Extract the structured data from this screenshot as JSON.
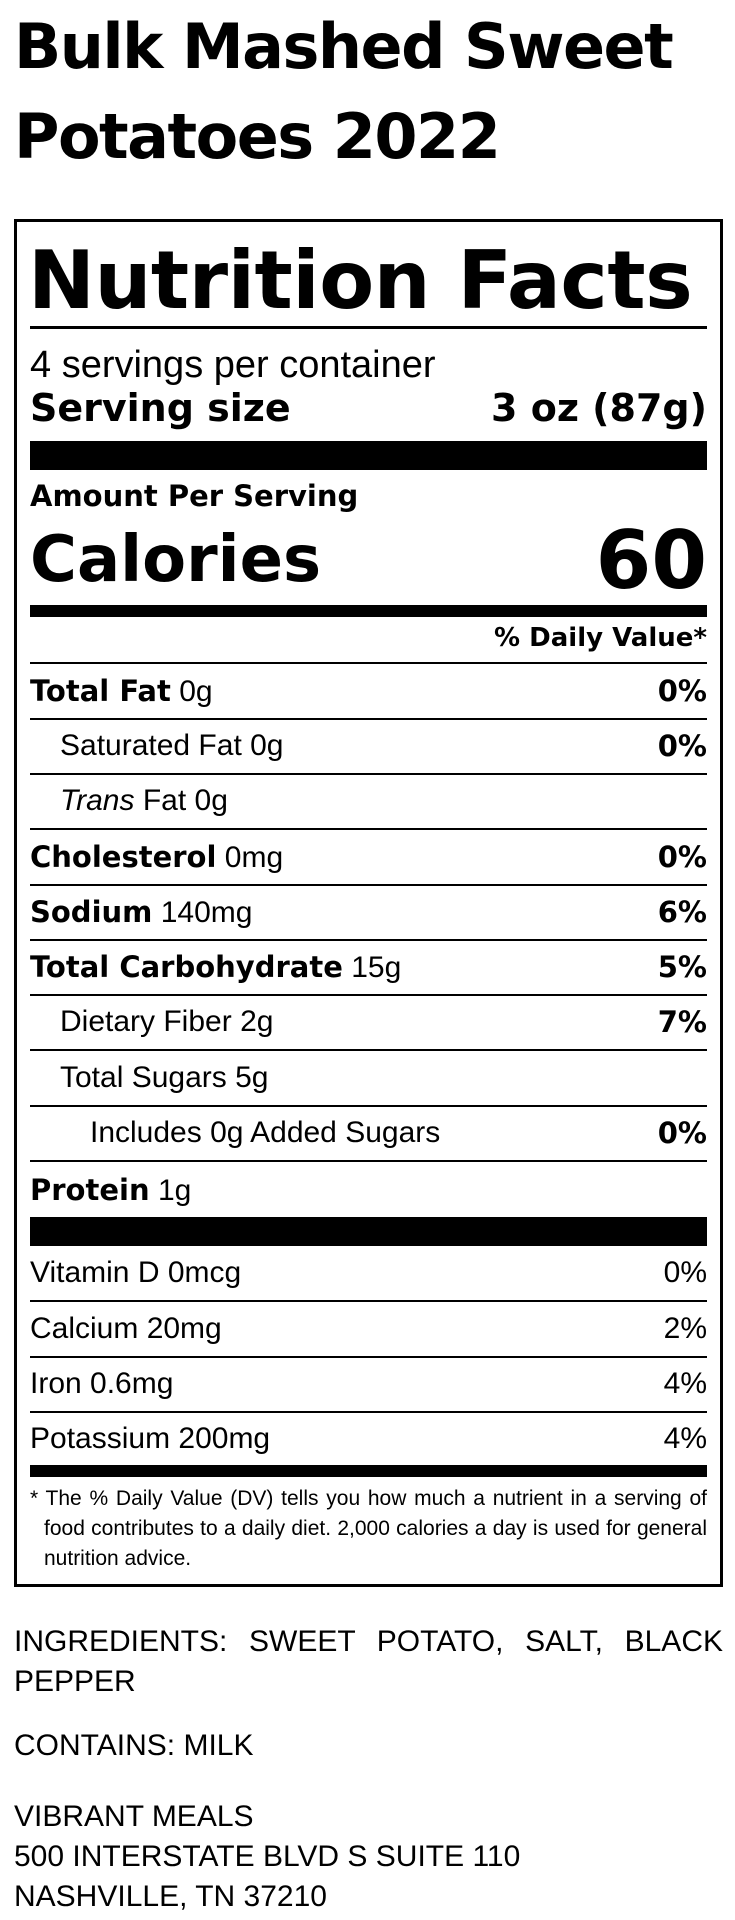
{
  "product": {
    "title": "Bulk Mashed Sweet Potatoes 2022"
  },
  "label": {
    "heading": "Nutrition Facts",
    "servings_per_container": "4 servings per container",
    "serving_size_label": "Serving size",
    "serving_size_value": "3 oz (87g)",
    "amount_per_serving": "Amount Per Serving",
    "calories_label": "Calories",
    "calories_value": "60",
    "daily_value_header": "% Daily Value*",
    "nutrients": [
      {
        "name": "Total Fat",
        "amount": "0g",
        "dv": "0%"
      },
      {
        "name": "Saturated Fat",
        "amount": "0g",
        "dv": "0%"
      },
      {
        "name_italic": "Trans",
        "name": "Fat",
        "amount": "0g"
      },
      {
        "name": "Cholesterol",
        "amount": "0mg",
        "dv": "0%"
      },
      {
        "name": "Sodium",
        "amount": "140mg",
        "dv": "6%"
      },
      {
        "name": "Total Carbohydrate",
        "amount": "15g",
        "dv": "5%"
      },
      {
        "name": "Dietary Fiber",
        "amount": "2g",
        "dv": "7%"
      },
      {
        "name": "Total Sugars",
        "amount": "5g"
      },
      {
        "text": "Includes 0g Added Sugars",
        "dv": "0%"
      },
      {
        "name": "Protein",
        "amount": "1g"
      }
    ],
    "vitamins": [
      {
        "text": "Vitamin D 0mcg",
        "dv": "0%"
      },
      {
        "text": "Calcium 20mg",
        "dv": "2%"
      },
      {
        "text": "Iron 0.6mg",
        "dv": "4%"
      },
      {
        "text": "Potassium 200mg",
        "dv": "4%"
      }
    ],
    "footnote": "* The % Daily Value (DV) tells you how much a nutrient in a serving of food contributes to a daily diet. 2,000 calories a day is used for general nutrition advice."
  },
  "ingredients": "INGREDIENTS: SWEET POTATO, SALT, BLACK PEPPER",
  "contains": "CONTAINS: MILK",
  "manufacturer": {
    "name": "VIBRANT MEALS",
    "address_line1": "500 INTERSTATE BLVD S SUITE 110",
    "address_line2": "NASHVILLE, TN 37210"
  }
}
